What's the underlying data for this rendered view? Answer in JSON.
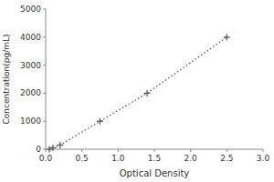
{
  "chart_data": {
    "type": "line",
    "x": [
      0.05,
      0.1,
      0.2,
      0.75,
      1.4,
      2.5
    ],
    "values": [
      0,
      50,
      150,
      1000,
      2000,
      4000
    ],
    "xlabel": "Optical Density",
    "ylabel": "Concentration(pg/mL)",
    "xlim": [
      0,
      3
    ],
    "ylim": [
      0,
      5000
    ],
    "xticks": [
      {
        "value": 0,
        "label": "0.0"
      },
      {
        "value": 0.5,
        "label": "0.5"
      },
      {
        "value": 1,
        "label": "1.0"
      },
      {
        "value": 1.5,
        "label": "1.5"
      },
      {
        "value": 2,
        "label": "2.0"
      },
      {
        "value": 2.5,
        "label": "2.5"
      },
      {
        "value": 3,
        "label": "3.0"
      }
    ],
    "yticks": [
      0,
      1000,
      2000,
      3000,
      4000,
      5000
    ],
    "color": "#555555",
    "marker": "plus",
    "line_style": "dotted",
    "grid": false
  }
}
